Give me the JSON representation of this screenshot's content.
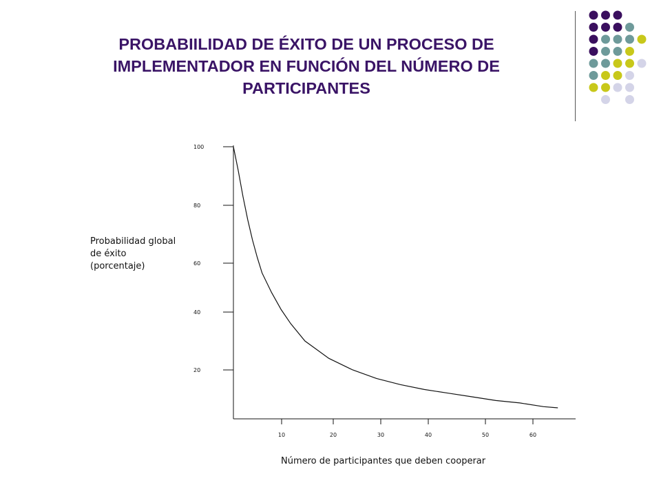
{
  "title_lines": [
    "PROBABIILIDAD DE ÉXITO DE UN PROCESO DE",
    "IMPLEMENTADOR EN FUNCIÓN DEL NÚMERO DE",
    "PARTICIPANTES"
  ],
  "colors": {
    "title": "#3a1466",
    "dot_purple": "#3a0f5e",
    "dot_teal": "#6e9a9a",
    "dot_yellow": "#c8c81a",
    "dot_lavender": "#d4d4e8"
  },
  "decoration": {
    "dot_rows": [
      [
        "purple",
        "purple",
        "purple",
        "none",
        "none"
      ],
      [
        "purple",
        "purple",
        "purple",
        "teal",
        "none"
      ],
      [
        "purple",
        "teal",
        "teal",
        "teal",
        "yellow"
      ],
      [
        "purple",
        "teal",
        "teal",
        "yellow",
        "none"
      ],
      [
        "teal",
        "teal",
        "yellow",
        "yellow",
        "lavender"
      ],
      [
        "teal",
        "yellow",
        "yellow",
        "lavender",
        "none"
      ],
      [
        "yellow",
        "yellow",
        "lavender",
        "lavender",
        "none"
      ],
      [
        "none",
        "lavender",
        "none",
        "lavender",
        "none"
      ]
    ]
  },
  "chart_data": {
    "type": "line",
    "ylabel_lines": [
      "Probabilidad global",
      "de éxito",
      "(porcentaje)"
    ],
    "xlabel": "Número de participantes que deben cooperar",
    "y_ticks": [
      {
        "value": 100,
        "label": "100"
      },
      {
        "value": 80,
        "label": "80"
      },
      {
        "value": 60,
        "label": "60"
      },
      {
        "value": 40,
        "label": "40"
      },
      {
        "value": 20,
        "label": "20"
      }
    ],
    "x_ticks": [
      {
        "value": 10,
        "label": "10"
      },
      {
        "value": 20,
        "label": "20"
      },
      {
        "value": 30,
        "label": "30"
      },
      {
        "value": 40,
        "label": "40"
      },
      {
        "value": 50,
        "label": "50"
      },
      {
        "value": 60,
        "label": "60"
      }
    ],
    "series": [
      {
        "x": [
          0,
          1,
          2,
          3,
          4,
          5,
          6,
          8,
          10,
          12,
          15,
          20,
          25,
          30,
          35,
          40,
          45,
          50,
          55,
          60,
          65,
          68
        ],
        "y": [
          100,
          92,
          83,
          75,
          68,
          62,
          56,
          48,
          41,
          36,
          30,
          24,
          20,
          16.5,
          14,
          12,
          10.5,
          9,
          7.5,
          6.5,
          5,
          4.5
        ]
      }
    ]
  }
}
